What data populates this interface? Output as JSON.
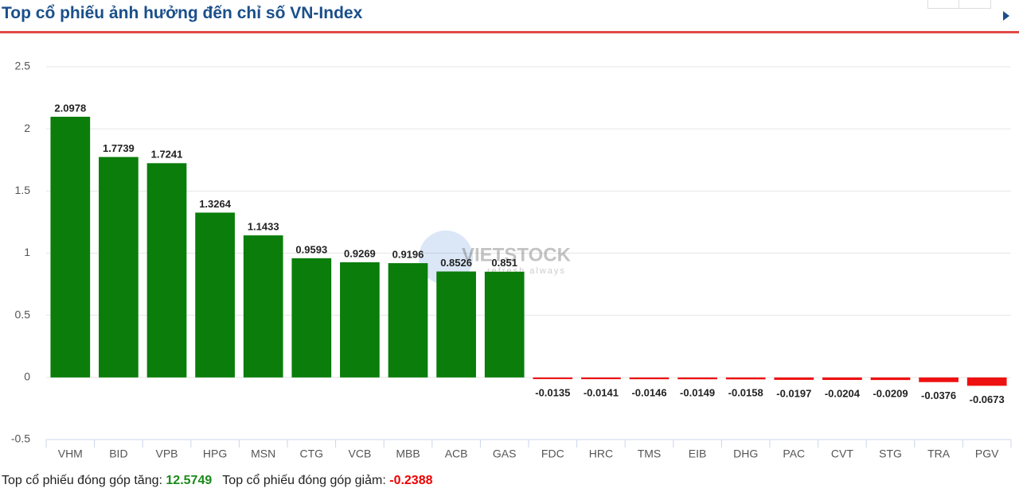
{
  "header": {
    "title": "Top cổ phiếu ảnh hưởng đến chỉ số VN-Index"
  },
  "chart_data": {
    "type": "bar",
    "categories": [
      "VHM",
      "BID",
      "VPB",
      "HPG",
      "MSN",
      "CTG",
      "VCB",
      "MBB",
      "ACB",
      "GAS",
      "FDC",
      "HRC",
      "TMS",
      "EIB",
      "DHG",
      "PAC",
      "CVT",
      "STG",
      "TRA",
      "PGV"
    ],
    "values": [
      2.0978,
      1.7739,
      1.7241,
      1.3264,
      1.1433,
      0.9593,
      0.9269,
      0.9196,
      0.8526,
      0.851,
      -0.0135,
      -0.0141,
      -0.0146,
      -0.0149,
      -0.0158,
      -0.0197,
      -0.0204,
      -0.0209,
      -0.0376,
      -0.0673
    ],
    "color": "#0a7d0a",
    "negative_color": "#ee1111",
    "ylim": [
      -0.5,
      2.5
    ],
    "yticks": [
      -0.5,
      0,
      0.5,
      1,
      1.5,
      2,
      2.5
    ],
    "grid": true,
    "watermark": "VIETSTOCK",
    "watermark_sub": "refresh always"
  },
  "footer": {
    "up_label": "Top cổ phiếu đóng góp tăng:",
    "up_value": "12.5749",
    "down_label": "Top cổ phiếu đóng góp giảm:",
    "down_value": "-0.2388"
  }
}
